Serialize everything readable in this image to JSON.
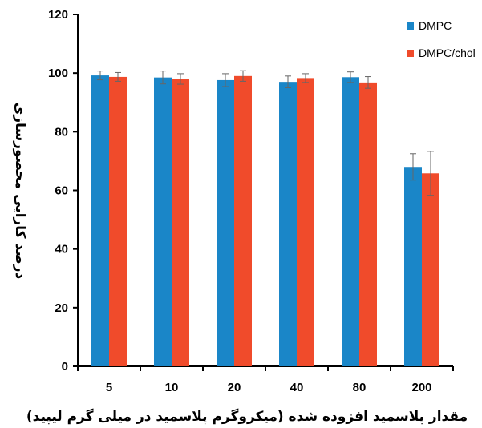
{
  "chart_data": {
    "type": "bar",
    "title": "",
    "xlabel": "مقدار پلاسمید افزوده شده (میکروگرم پلاسمید در میلی گرم لیپید)",
    "ylabel": "درصد کارایی محصورسازی",
    "categories": [
      "5",
      "10",
      "20",
      "40",
      "80",
      "200"
    ],
    "ylim": [
      0,
      120
    ],
    "yticks": [
      0,
      20,
      40,
      60,
      80,
      100,
      120
    ],
    "grid": false,
    "legend_position": "top-right",
    "series": [
      {
        "name": "DMPC",
        "color": "#1a86c8",
        "values": [
          99.2,
          98.5,
          97.6,
          97.0,
          98.6,
          68.0
        ],
        "errors": [
          1.5,
          2.2,
          2.2,
          2.0,
          1.8,
          4.5
        ]
      },
      {
        "name": "DMPC/chol",
        "color": "#f04b2b",
        "values": [
          98.7,
          98.0,
          99.0,
          98.3,
          96.8,
          65.8
        ],
        "errors": [
          1.5,
          1.8,
          1.8,
          1.5,
          2.0,
          7.5
        ]
      }
    ]
  }
}
